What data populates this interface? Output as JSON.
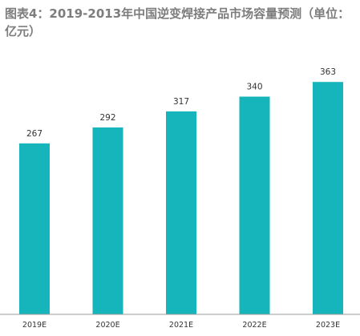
{
  "chart_data": {
    "type": "bar",
    "title": "图表4：2019-2013年中国逆变焊接产品市场容量预测（单位：亿元）",
    "categories": [
      "2019E",
      "2020E",
      "2021E",
      "2022E",
      "2023E"
    ],
    "values": [
      267,
      292,
      317,
      340,
      363
    ],
    "xlabel": "",
    "ylabel": "",
    "ylim": [
      0,
      380
    ],
    "grid": false,
    "legend": "none",
    "bar_color": "#16b5bb",
    "axis_color": "#9a9a9a"
  }
}
